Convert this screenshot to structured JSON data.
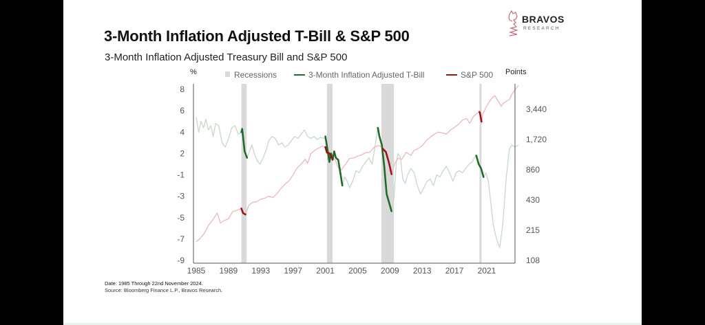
{
  "slide": {
    "title": "3-Month Inflation Adjusted T-Bill & S&P 500",
    "subtitle": "3-Month Inflation Adjusted Treasury Bill and S&P 500",
    "logo": {
      "name": "BRAVOS",
      "sub": "RESEARCH",
      "icon": "knight-chess-piece-icon"
    },
    "footer_date": "Date: 1985 Through 22nd November 2024.",
    "footer_source": "Source: Bloomberg Finance L.P., Bravos Research."
  },
  "colors": {
    "tbill_highlight": "#1e6b2a",
    "tbill_faded": "#c5d9c8",
    "spx_highlight": "#a01218",
    "spx_faded": "#eab8bb",
    "recession": "#d9d9d9",
    "axis": "#555555"
  },
  "chart_data": {
    "type": "line",
    "title": "3-Month Inflation Adjusted Treasury Bill and S&P 500",
    "left_axis_label": "%",
    "right_axis_label": "Points",
    "xlim": [
      1985,
      2024.9
    ],
    "x_ticks": [
      "1985",
      "1989",
      "1993",
      "1997",
      "2001",
      "2005",
      "2009",
      "2013",
      "2017",
      "2021"
    ],
    "left_ticks": [
      "8",
      "6",
      "4",
      "2",
      "-1",
      "-3",
      "-5",
      "-7",
      "-9"
    ],
    "right_ticks": [
      "3,440",
      "1,720",
      "860",
      "430",
      "215",
      "108"
    ],
    "right_scale": "log",
    "grid": false,
    "legend": {
      "position": "top",
      "entries": [
        {
          "label": "Recessions",
          "type": "box"
        },
        {
          "label": "3-Month Inflation Adjusted T-Bill",
          "type": "line"
        },
        {
          "label": "S&P 500",
          "type": "line"
        }
      ]
    },
    "recessions": [
      {
        "start": 1990.6,
        "end": 1991.25
      },
      {
        "start": 2001.2,
        "end": 2001.9
      },
      {
        "start": 2007.95,
        "end": 2009.5
      },
      {
        "start": 2020.1,
        "end": 2020.35
      }
    ],
    "series": [
      {
        "name": "3-Month Inflation Adjusted T-Bill",
        "axis": "left",
        "unit": "tick-index (0 = 8 ... 8 = -9)",
        "points": [
          [
            1985.0,
            1.3
          ],
          [
            1985.3,
            2.0
          ],
          [
            1985.6,
            1.5
          ],
          [
            1985.9,
            1.8
          ],
          [
            1986.2,
            1.4
          ],
          [
            1986.5,
            1.9
          ],
          [
            1986.8,
            1.7
          ],
          [
            1987.1,
            2.2
          ],
          [
            1987.4,
            1.6
          ],
          [
            1987.8,
            1.7
          ],
          [
            1988.2,
            2.5
          ],
          [
            1988.6,
            2.7
          ],
          [
            1989.0,
            2.3
          ],
          [
            1989.4,
            1.8
          ],
          [
            1989.8,
            1.7
          ],
          [
            1990.2,
            2.1
          ],
          [
            1990.6,
            2.0
          ],
          [
            1990.7,
            1.85
          ],
          [
            1991.0,
            2.9
          ],
          [
            1991.3,
            3.2
          ],
          [
            1991.6,
            2.9
          ],
          [
            1991.9,
            2.6
          ],
          [
            1992.2,
            3.0
          ],
          [
            1992.5,
            3.3
          ],
          [
            1992.9,
            3.5
          ],
          [
            1993.3,
            3.2
          ],
          [
            1993.7,
            2.8
          ],
          [
            1994.0,
            2.4
          ],
          [
            1994.4,
            2.2
          ],
          [
            1994.8,
            2.3
          ],
          [
            1995.2,
            2.6
          ],
          [
            1995.6,
            2.5
          ],
          [
            1996.0,
            2.7
          ],
          [
            1996.4,
            2.6
          ],
          [
            1996.8,
            2.4
          ],
          [
            1997.2,
            2.2
          ],
          [
            1997.6,
            2.3
          ],
          [
            1998.0,
            2.1
          ],
          [
            1998.4,
            1.9
          ],
          [
            1998.8,
            2.2
          ],
          [
            1999.2,
            2.3
          ],
          [
            1999.6,
            2.2
          ],
          [
            2000.0,
            2.35
          ],
          [
            2000.4,
            2.25
          ],
          [
            2000.9,
            2.3
          ],
          [
            2001.0,
            2.2
          ],
          [
            2001.3,
            2.9
          ],
          [
            2001.5,
            3.4
          ],
          [
            2001.7,
            3.0
          ],
          [
            2001.9,
            3.3
          ],
          [
            2002.1,
            2.9
          ],
          [
            2002.3,
            3.2
          ],
          [
            2002.6,
            3.3
          ],
          [
            2002.9,
            4.0
          ],
          [
            2003.1,
            4.5
          ],
          [
            2003.4,
            4.1
          ],
          [
            2003.7,
            4.3
          ],
          [
            2004.0,
            4.6
          ],
          [
            2004.4,
            4.3
          ],
          [
            2004.8,
            3.8
          ],
          [
            2005.2,
            3.9
          ],
          [
            2005.6,
            3.6
          ],
          [
            2006.0,
            3.4
          ],
          [
            2006.4,
            3.2
          ],
          [
            2006.8,
            3.5
          ],
          [
            2007.1,
            2.8
          ],
          [
            2007.3,
            2.3
          ],
          [
            2007.5,
            1.8
          ],
          [
            2007.7,
            2.2
          ],
          [
            2008.0,
            2.6
          ],
          [
            2008.3,
            3.6
          ],
          [
            2008.6,
            4.9
          ],
          [
            2008.9,
            5.3
          ],
          [
            2009.2,
            5.7
          ],
          [
            2009.5,
            5.1
          ],
          [
            2009.8,
            3.4
          ],
          [
            2010.0,
            3.0
          ],
          [
            2010.3,
            3.2
          ],
          [
            2010.6,
            4.2
          ],
          [
            2010.9,
            4.4
          ],
          [
            2011.2,
            4.0
          ],
          [
            2011.6,
            3.7
          ],
          [
            2012.0,
            3.9
          ],
          [
            2012.4,
            4.5
          ],
          [
            2012.8,
            4.9
          ],
          [
            2013.2,
            4.6
          ],
          [
            2013.6,
            4.3
          ],
          [
            2014.0,
            4.2
          ],
          [
            2014.4,
            4.5
          ],
          [
            2014.8,
            4.0
          ],
          [
            2015.2,
            4.1
          ],
          [
            2015.6,
            3.8
          ],
          [
            2016.0,
            3.6
          ],
          [
            2016.4,
            3.9
          ],
          [
            2016.8,
            4.3
          ],
          [
            2017.2,
            3.9
          ],
          [
            2017.6,
            3.8
          ],
          [
            2018.0,
            3.9
          ],
          [
            2018.4,
            3.7
          ],
          [
            2018.8,
            3.5
          ],
          [
            2019.2,
            3.4
          ],
          [
            2019.6,
            3.1
          ],
          [
            2019.7,
            3.1
          ],
          [
            2020.0,
            3.5
          ],
          [
            2020.3,
            3.7
          ],
          [
            2020.6,
            4.1
          ],
          [
            2020.9,
            3.9
          ],
          [
            2021.2,
            4.3
          ],
          [
            2021.5,
            5.3
          ],
          [
            2021.8,
            6.3
          ],
          [
            2022.2,
            7.0
          ],
          [
            2022.6,
            7.4
          ],
          [
            2023.0,
            6.3
          ],
          [
            2023.4,
            4.2
          ],
          [
            2023.8,
            2.8
          ],
          [
            2024.1,
            2.6
          ],
          [
            2024.5,
            2.7
          ],
          [
            2024.9,
            2.6
          ]
        ],
        "highlighted_ranges": [
          [
            1990.6,
            1991.3
          ],
          [
            2001.0,
            2003.1
          ],
          [
            2007.5,
            2009.2
          ],
          [
            2019.7,
            2020.6
          ]
        ]
      },
      {
        "name": "S&P 500",
        "axis": "right",
        "unit": "points",
        "points": [
          [
            1985.0,
            165
          ],
          [
            1985.5,
            180
          ],
          [
            1986.0,
            200
          ],
          [
            1986.5,
            240
          ],
          [
            1987.0,
            270
          ],
          [
            1987.6,
            320
          ],
          [
            1988.0,
            255
          ],
          [
            1988.5,
            270
          ],
          [
            1989.0,
            280
          ],
          [
            1989.5,
            330
          ],
          [
            1990.0,
            340
          ],
          [
            1990.6,
            355
          ],
          [
            1990.8,
            320
          ],
          [
            1991.1,
            310
          ],
          [
            1991.5,
            380
          ],
          [
            1992.0,
            410
          ],
          [
            1992.5,
            415
          ],
          [
            1993.0,
            440
          ],
          [
            1993.5,
            450
          ],
          [
            1994.0,
            470
          ],
          [
            1994.5,
            455
          ],
          [
            1995.0,
            500
          ],
          [
            1995.5,
            560
          ],
          [
            1996.0,
            620
          ],
          [
            1996.5,
            670
          ],
          [
            1997.0,
            770
          ],
          [
            1997.5,
            900
          ],
          [
            1998.0,
            980
          ],
          [
            1998.5,
            1100
          ],
          [
            1998.8,
            1000
          ],
          [
            1999.2,
            1250
          ],
          [
            1999.6,
            1330
          ],
          [
            2000.0,
            1400
          ],
          [
            2000.6,
            1480
          ],
          [
            2001.0,
            1450
          ],
          [
            2001.2,
            1280
          ],
          [
            2001.5,
            1260
          ],
          [
            2001.9,
            1100
          ],
          [
            2002.2,
            1100
          ],
          [
            2002.6,
            900
          ],
          [
            2003.0,
            860
          ],
          [
            2003.5,
            980
          ],
          [
            2004.0,
            1120
          ],
          [
            2004.5,
            1130
          ],
          [
            2005.0,
            1180
          ],
          [
            2005.5,
            1210
          ],
          [
            2006.0,
            1280
          ],
          [
            2006.5,
            1290
          ],
          [
            2007.0,
            1430
          ],
          [
            2007.5,
            1500
          ],
          [
            2007.9,
            1480
          ],
          [
            2008.1,
            1400
          ],
          [
            2008.5,
            1300
          ],
          [
            2008.9,
            1000
          ],
          [
            2009.2,
            780
          ],
          [
            2009.6,
            1000
          ],
          [
            2010.0,
            1120
          ],
          [
            2010.5,
            1100
          ],
          [
            2011.0,
            1290
          ],
          [
            2011.6,
            1200
          ],
          [
            2012.0,
            1350
          ],
          [
            2012.5,
            1400
          ],
          [
            2013.0,
            1500
          ],
          [
            2013.5,
            1680
          ],
          [
            2014.0,
            1820
          ],
          [
            2014.5,
            1950
          ],
          [
            2015.0,
            2050
          ],
          [
            2015.6,
            2000
          ],
          [
            2016.0,
            1950
          ],
          [
            2016.5,
            2150
          ],
          [
            2017.0,
            2280
          ],
          [
            2017.5,
            2450
          ],
          [
            2018.0,
            2700
          ],
          [
            2018.5,
            2800
          ],
          [
            2018.9,
            2500
          ],
          [
            2019.3,
            2900
          ],
          [
            2019.8,
            3150
          ],
          [
            2020.1,
            3250
          ],
          [
            2020.15,
            3200
          ],
          [
            2020.35,
            2600
          ],
          [
            2020.5,
            3100
          ],
          [
            2020.9,
            3600
          ],
          [
            2021.3,
            4100
          ],
          [
            2021.8,
            4600
          ],
          [
            2022.0,
            4700
          ],
          [
            2022.4,
            4200
          ],
          [
            2022.8,
            3700
          ],
          [
            2023.0,
            3900
          ],
          [
            2023.4,
            4150
          ],
          [
            2023.8,
            4300
          ],
          [
            2024.1,
            4850
          ],
          [
            2024.5,
            5400
          ],
          [
            2024.9,
            5950
          ]
        ],
        "highlighted_ranges": [
          [
            1990.6,
            1991.1
          ],
          [
            2001.0,
            2002.0
          ],
          [
            2008.0,
            2009.2
          ],
          [
            2020.1,
            2020.35
          ]
        ]
      }
    ]
  }
}
